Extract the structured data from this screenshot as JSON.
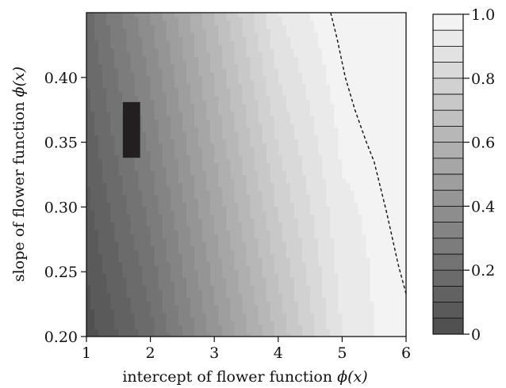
{
  "chart_data": {
    "type": "heatmap",
    "title": "",
    "xlabel": "intercept of flower function",
    "xlabel_symbol": "ϕ(x)",
    "ylabel": "slope of flower function",
    "ylabel_symbol": "ϕ(x)",
    "xlim": [
      1,
      6
    ],
    "ylim": [
      0.2,
      0.45
    ],
    "x_ticks": [
      1,
      2,
      3,
      4,
      5,
      6
    ],
    "x_tick_labels": [
      "1",
      "2",
      "3",
      "4",
      "5",
      "6"
    ],
    "y_ticks": [
      0.2,
      0.25,
      0.3,
      0.35,
      0.4
    ],
    "y_tick_labels": [
      "0.20",
      "0.25",
      "0.30",
      "0.35",
      "0.40"
    ],
    "colorbar": {
      "range": [
        0,
        1
      ],
      "ticks": [
        0,
        0.2,
        0.4,
        0.6,
        0.8,
        1.0
      ],
      "tick_labels": [
        "0",
        "0.2",
        "0.4",
        "0.6",
        "0.8",
        "1.0"
      ],
      "levels": 20,
      "color_low": "#4d4d4d",
      "color_high": "#f7f7f7"
    },
    "surface": {
      "description_values": [
        {
          "x": 1,
          "y": 0.2,
          "value": 0.02
        },
        {
          "x": 2,
          "y": 0.2,
          "value": 0.18
        },
        {
          "x": 3,
          "y": 0.2,
          "value": 0.42
        },
        {
          "x": 4,
          "y": 0.2,
          "value": 0.66
        },
        {
          "x": 5,
          "y": 0.2,
          "value": 0.9
        },
        {
          "x": 6,
          "y": 0.2,
          "value": 1.0
        },
        {
          "x": 1,
          "y": 0.45,
          "value": 0.18
        },
        {
          "x": 2,
          "y": 0.45,
          "value": 0.4
        },
        {
          "x": 3,
          "y": 0.45,
          "value": 0.65
        },
        {
          "x": 4,
          "y": 0.45,
          "value": 0.9
        },
        {
          "x": 5,
          "y": 0.45,
          "value": 1.0
        },
        {
          "x": 6,
          "y": 0.45,
          "value": 0.95
        }
      ]
    },
    "dashed_contour": [
      {
        "x": 4.82,
        "y": 0.45
      },
      {
        "x": 4.92,
        "y": 0.43
      },
      {
        "x": 5.05,
        "y": 0.4
      },
      {
        "x": 5.2,
        "y": 0.375
      },
      {
        "x": 5.38,
        "y": 0.35
      },
      {
        "x": 5.5,
        "y": 0.335
      },
      {
        "x": 5.7,
        "y": 0.295
      },
      {
        "x": 5.88,
        "y": 0.255
      },
      {
        "x": 6.0,
        "y": 0.233
      }
    ],
    "marker_rect": {
      "x0": 1.57,
      "x1": 1.84,
      "y0": 0.338,
      "y1": 0.381,
      "color": "#231f20"
    }
  }
}
